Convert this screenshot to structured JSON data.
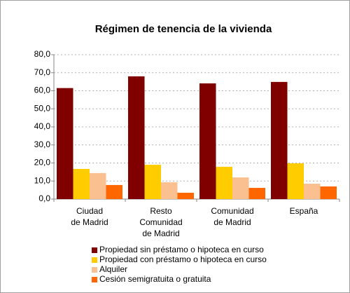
{
  "chart_data": {
    "type": "bar",
    "title": "Régimen de tenencia de la vivienda",
    "categories": [
      "Ciudad\nde Madrid",
      "Resto\nComunidad\nde Madrid",
      "Comunidad\nde Madrid",
      "España"
    ],
    "series": [
      {
        "name": "Propiedad sin préstamo o hipoteca en curso",
        "color": "#800000",
        "values": [
          61.5,
          68.0,
          64.1,
          64.9
        ]
      },
      {
        "name": "Propiedad con préstamo o hipoteca en curso",
        "color": "#ffcc00",
        "values": [
          16.7,
          19.0,
          17.9,
          19.8
        ]
      },
      {
        "name": "Alquiler",
        "color": "#fac090",
        "values": [
          14.4,
          9.3,
          12.0,
          8.5
        ]
      },
      {
        "name": "Cesión semigratuita o gratuita",
        "color": "#ff6600",
        "values": [
          7.8,
          3.5,
          6.2,
          7.0
        ]
      }
    ],
    "ylim": [
      0,
      80
    ],
    "yticks": [
      {
        "value": 0,
        "label": "0,0"
      },
      {
        "value": 10,
        "label": "10,0"
      },
      {
        "value": 20,
        "label": "20,0"
      },
      {
        "value": 30,
        "label": "30,0"
      },
      {
        "value": 40,
        "label": "40,0"
      },
      {
        "value": 50,
        "label": "50,0"
      },
      {
        "value": 60,
        "label": "60,0"
      },
      {
        "value": 70,
        "label": "70,0"
      },
      {
        "value": 80,
        "label": "80,0"
      }
    ],
    "grid": true,
    "legend": "bottom"
  }
}
